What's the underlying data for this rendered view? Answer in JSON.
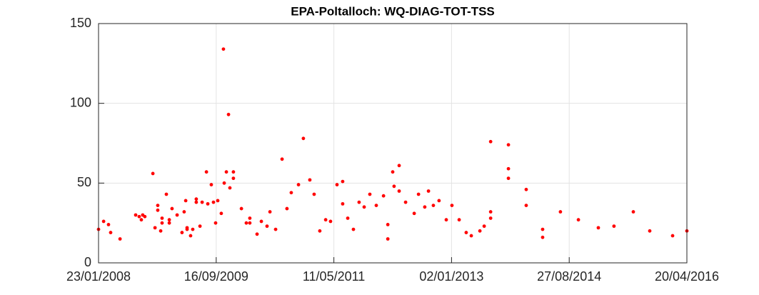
{
  "chart_data": {
    "type": "scatter",
    "title": "EPA-Poltalloch: WQ-DIAG-TOT-TSS",
    "color": "#ff0000",
    "grid": true,
    "xlim": [
      "2008-01-23",
      "2016-04-20"
    ],
    "xticks": [
      {
        "value": "2008-01-23",
        "label": "23/01/2008"
      },
      {
        "value": "2009-09-16",
        "label": "16/09/2009"
      },
      {
        "value": "2011-05-11",
        "label": "11/05/2011"
      },
      {
        "value": "2013-01-02",
        "label": "02/01/2013"
      },
      {
        "value": "2014-08-27",
        "label": "27/08/2014"
      },
      {
        "value": "2016-04-20",
        "label": "20/04/2016"
      }
    ],
    "ylim": [
      0,
      150
    ],
    "yticks": [
      0,
      50,
      100,
      150
    ],
    "x": [
      "2008-01-23",
      "2008-02-18",
      "2008-03-14",
      "2008-03-25",
      "2008-05-12",
      "2008-07-31",
      "2008-08-18",
      "2008-08-29",
      "2008-09-05",
      "2008-09-16",
      "2008-10-27",
      "2008-11-07",
      "2008-11-21",
      "2008-11-21",
      "2008-12-06",
      "2008-12-13",
      "2008-12-13",
      "2009-01-04",
      "2009-01-19",
      "2009-01-19",
      "2009-02-02",
      "2009-02-28",
      "2009-03-25",
      "2009-04-05",
      "2009-04-13",
      "2009-04-20",
      "2009-04-20",
      "2009-05-08",
      "2009-05-19",
      "2009-06-06",
      "2009-06-06",
      "2009-06-25",
      "2009-07-06",
      "2009-07-28",
      "2009-08-04",
      "2009-08-22",
      "2009-09-02",
      "2009-09-13",
      "2009-09-24",
      "2009-10-12",
      "2009-10-23",
      "2009-10-27",
      "2009-11-07",
      "2009-11-18",
      "2009-11-25",
      "2009-12-13",
      "2009-12-13",
      "2010-01-23",
      "2010-02-17",
      "2010-03-07",
      "2010-03-07",
      "2010-04-13",
      "2010-05-05",
      "2010-06-03",
      "2010-06-18",
      "2010-07-17",
      "2010-08-19",
      "2010-09-13",
      "2010-10-05",
      "2010-11-11",
      "2010-12-06",
      "2011-01-08",
      "2011-01-30",
      "2011-02-28",
      "2011-03-30",
      "2011-04-24",
      "2011-05-27",
      "2011-06-25",
      "2011-06-25",
      "2011-07-21",
      "2011-08-19",
      "2011-09-17",
      "2011-10-13",
      "2011-11-11",
      "2011-12-14",
      "2012-01-20",
      "2012-02-11",
      "2012-02-11",
      "2012-03-07",
      "2012-03-14",
      "2012-04-09",
      "2012-04-09",
      "2012-05-12",
      "2012-06-25",
      "2012-07-17",
      "2012-08-18",
      "2012-09-06",
      "2012-10-01",
      "2012-10-30",
      "2012-12-06",
      "2013-01-04",
      "2013-02-10",
      "2013-03-18",
      "2013-04-13",
      "2013-05-27",
      "2013-06-18",
      "2013-07-21",
      "2013-07-21",
      "2013-07-21",
      "2013-10-20",
      "2013-10-20",
      "2013-10-20",
      "2014-01-19",
      "2014-01-19",
      "2014-04-13",
      "2014-04-13",
      "2014-07-13",
      "2014-10-13",
      "2015-01-23",
      "2015-04-13",
      "2015-07-21",
      "2015-10-13",
      "2016-02-07",
      "2016-04-20"
    ],
    "values": [
      21,
      26,
      24,
      19,
      15,
      30,
      29,
      27,
      30,
      29,
      56,
      22,
      36,
      33,
      20,
      28,
      25,
      43,
      27,
      25,
      34,
      30,
      19,
      32,
      39,
      22,
      21,
      17,
      21,
      38,
      40,
      23,
      38,
      57,
      37,
      49,
      38,
      25,
      39,
      31,
      134,
      50,
      57,
      93,
      47,
      53,
      57,
      34,
      25,
      28,
      25,
      18,
      26,
      23,
      32,
      21,
      65,
      34,
      44,
      49,
      78,
      52,
      43,
      20,
      27,
      26,
      49,
      51,
      37,
      28,
      21,
      38,
      35,
      43,
      36,
      42,
      24,
      15,
      57,
      48,
      61,
      45,
      38,
      31,
      43,
      35,
      45,
      36,
      39,
      27,
      36,
      27,
      19,
      17,
      20,
      23,
      76,
      32,
      28,
      74,
      59,
      53,
      46,
      36,
      21,
      16,
      32,
      27,
      22,
      23,
      32,
      20,
      17,
      20
    ]
  }
}
